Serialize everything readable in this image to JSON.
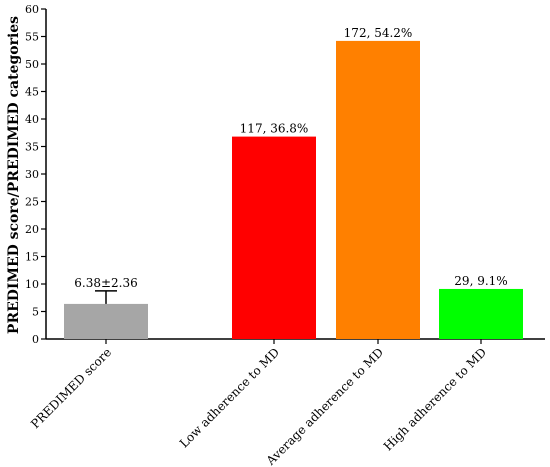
{
  "chart_data": {
    "type": "bar",
    "title": "",
    "xlabel": "",
    "ylabel": "PREDIMED score/PREDIMED categories",
    "ylim": [
      0,
      60
    ],
    "yticks": [
      0,
      5,
      10,
      15,
      20,
      25,
      30,
      35,
      40,
      45,
      50,
      55,
      60
    ],
    "categories": [
      "PREDIMED score",
      "Low adherence to MD",
      "Average adherence to MD",
      "High adherence to MD"
    ],
    "values": [
      6.38,
      36.8,
      54.2,
      9.1
    ],
    "error_bars": [
      2.36,
      null,
      null,
      null
    ],
    "data_labels": [
      "6.38±2.36",
      "117, 36.8%",
      "172, 54.2%",
      "29, 9.1%"
    ],
    "colors": [
      "#a6a6a6",
      "#ff0000",
      "#ff8000",
      "#00ff00"
    ],
    "grid": false,
    "legend": "none"
  }
}
